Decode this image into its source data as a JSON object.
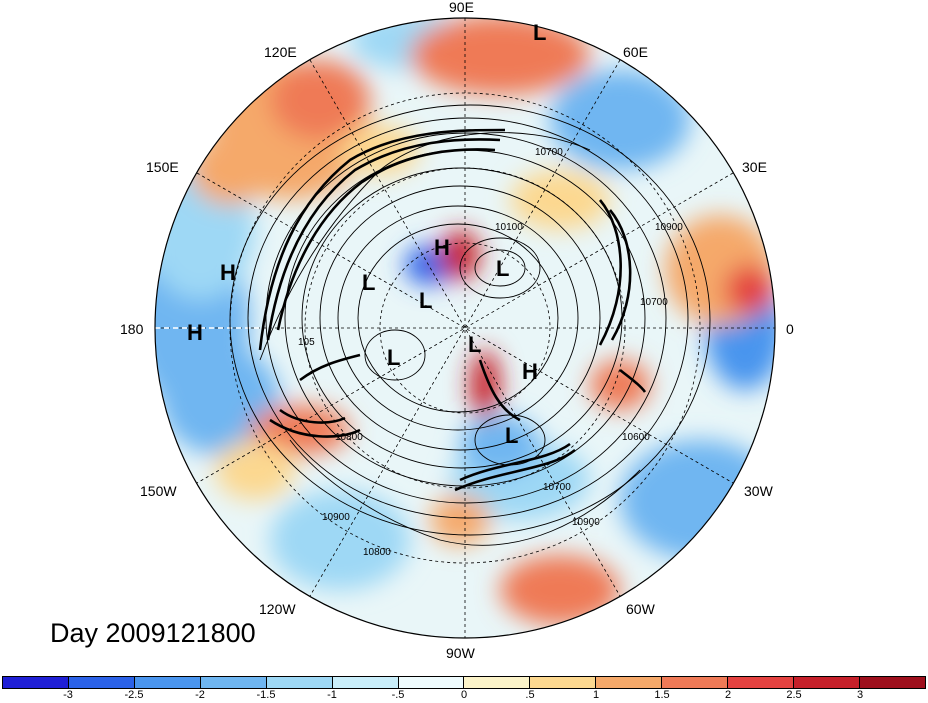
{
  "title": "Day 2009121800",
  "longitude_labels": {
    "lon_90e": "90E",
    "lon_120e": "120E",
    "lon_60e": "60E",
    "lon_150e": "150E",
    "lon_30e": "30E",
    "lon_180": "180",
    "lon_0": "0",
    "lon_150w": "150W",
    "lon_30w": "30W",
    "lon_120w": "120W",
    "lon_60w": "60W",
    "lon_90w": "90W"
  },
  "pressure_centers": [
    "L",
    "H",
    "H",
    "L",
    "L",
    "H",
    "L",
    "L",
    "L",
    "H",
    "L"
  ],
  "contour_labels": {
    "c1": "10700",
    "c2": "10100",
    "c3": "10900",
    "c4": "10700",
    "c5": "10600",
    "c6": "10700",
    "c7": "10900",
    "c8": "10800",
    "c9": "10900",
    "c10": "10800",
    "c11": "105"
  },
  "colorbar": {
    "colors": [
      "#1f1fd6",
      "#2b62e8",
      "#4a95ee",
      "#6fb6f1",
      "#9ed8f5",
      "#c9eefa",
      "#eefbfd",
      "#fbf3c9",
      "#fcd890",
      "#f5a96a",
      "#ef7a57",
      "#e44240",
      "#c6202a",
      "#9e0f1c"
    ],
    "tick_labels": [
      "-3",
      "-2.5",
      "-2",
      "-1.5",
      "-1",
      "-.5",
      "0",
      ".5",
      "1",
      "1.5",
      "2",
      "2.5",
      "3"
    ]
  }
}
